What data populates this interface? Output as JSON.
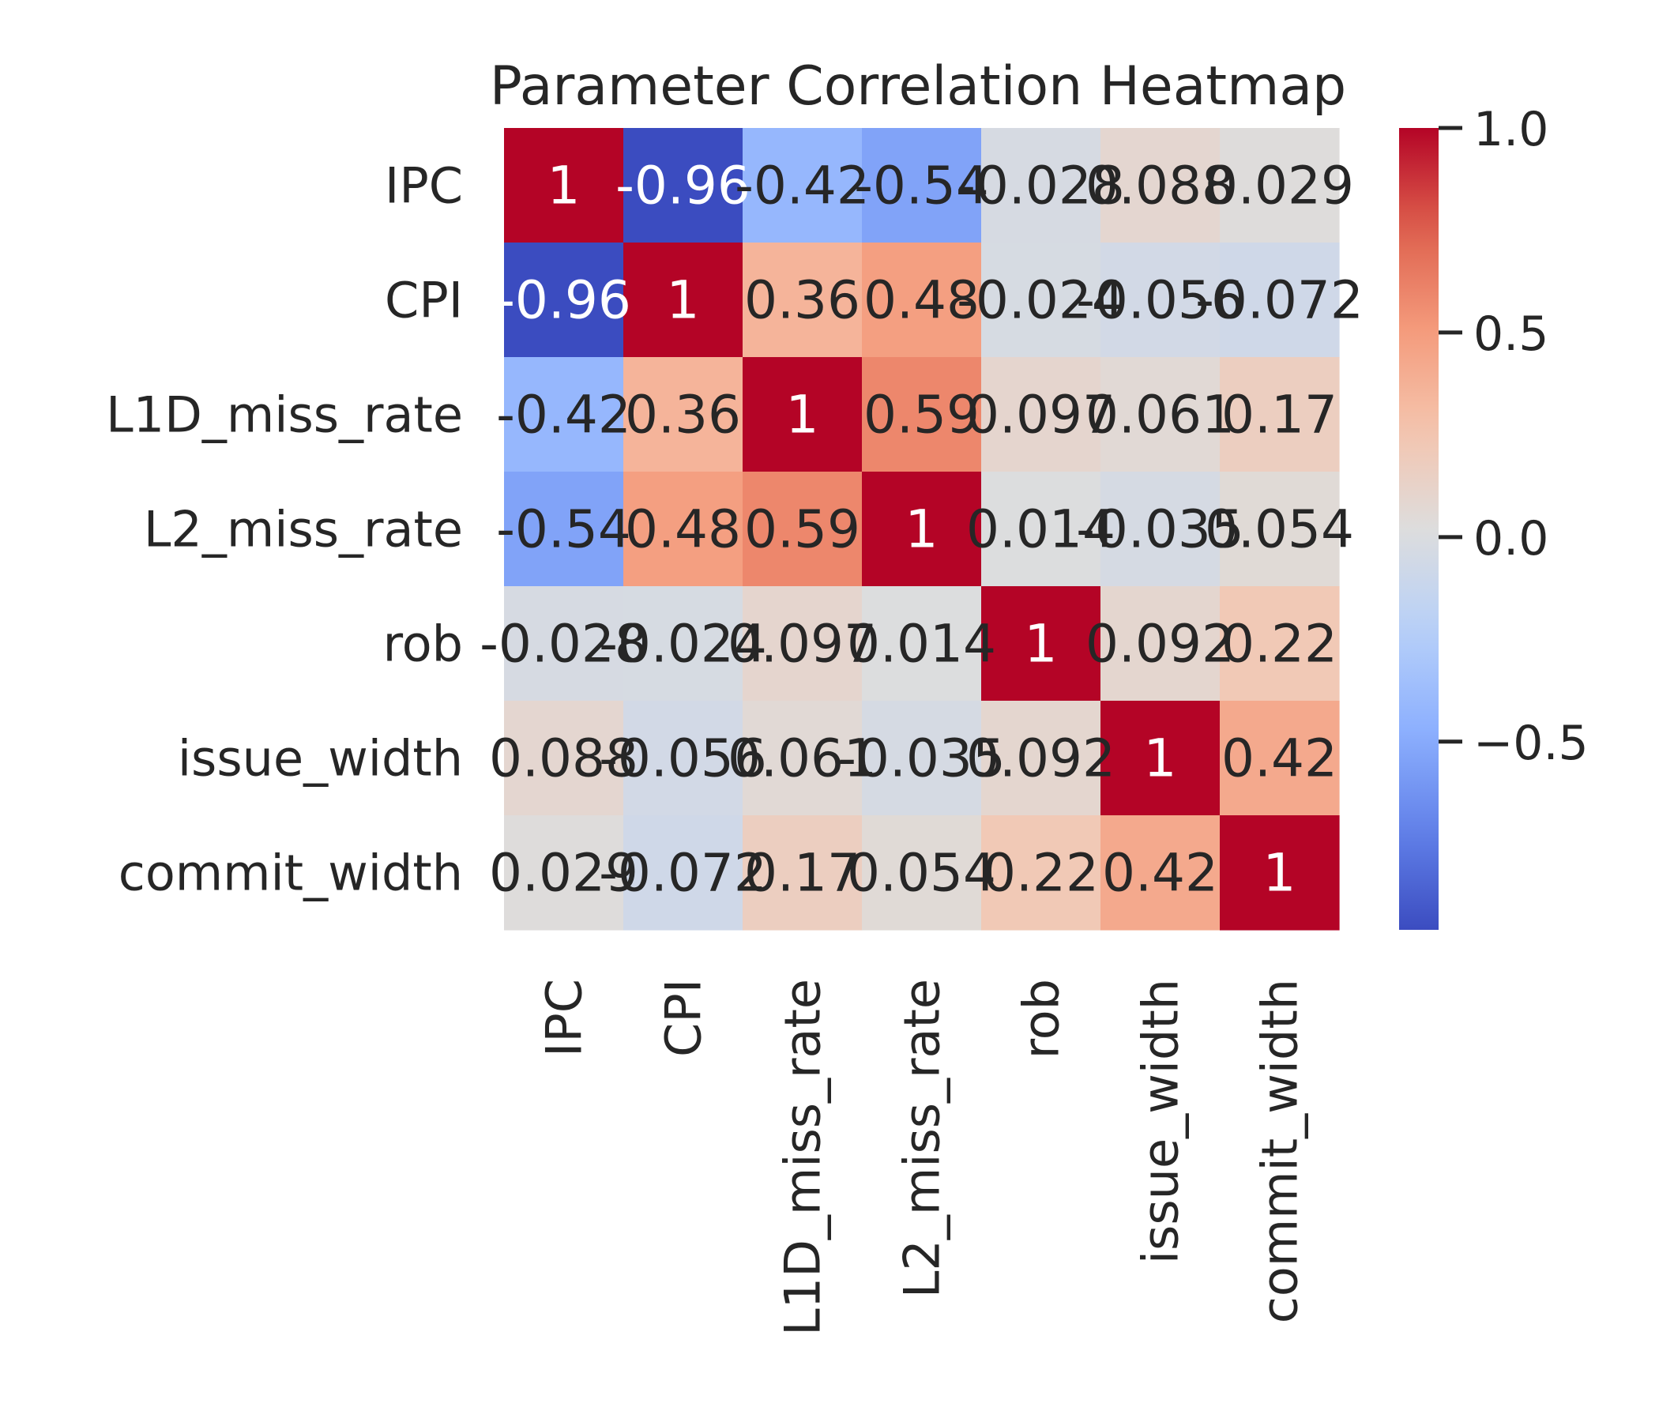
{
  "chart_data": {
    "type": "heatmap",
    "title": "Parameter Correlation Heatmap",
    "xlabel": "",
    "ylabel": "",
    "labels": [
      "IPC",
      "CPI",
      "L1D_miss_rate",
      "L2_miss_rate",
      "rob",
      "issue_width",
      "commit_width"
    ],
    "matrix": [
      [
        1,
        -0.96,
        -0.42,
        -0.54,
        -0.028,
        0.088,
        0.029
      ],
      [
        -0.96,
        1,
        0.36,
        0.48,
        -0.024,
        -0.056,
        -0.072
      ],
      [
        -0.42,
        0.36,
        1,
        0.59,
        0.097,
        0.061,
        0.17
      ],
      [
        -0.54,
        0.48,
        0.59,
        1,
        0.014,
        -0.035,
        0.054
      ],
      [
        -0.028,
        -0.024,
        0.097,
        0.014,
        1,
        0.092,
        0.22
      ],
      [
        0.088,
        -0.056,
        0.061,
        -0.035,
        0.092,
        1,
        0.42
      ],
      [
        0.029,
        -0.072,
        0.17,
        0.054,
        0.22,
        0.42,
        1
      ]
    ],
    "annotations": [
      [
        "1",
        "-0.96",
        "-0.42",
        "-0.54",
        "-0.028",
        "0.088",
        "0.029"
      ],
      [
        "-0.96",
        "1",
        "0.36",
        "0.48",
        "-0.024",
        "-0.056",
        "-0.072"
      ],
      [
        "-0.42",
        "0.36",
        "1",
        "0.59",
        "0.097",
        "0.061",
        "0.17"
      ],
      [
        "-0.54",
        "0.48",
        "0.59",
        "1",
        "0.014",
        "-0.035",
        "0.054"
      ],
      [
        "-0.028",
        "-0.024",
        "0.097",
        "0.014",
        "1",
        "0.092",
        "0.22"
      ],
      [
        "0.088",
        "-0.056",
        "0.061",
        "-0.035",
        "0.092",
        "1",
        "0.42"
      ],
      [
        "0.029",
        "-0.072",
        "0.17",
        "0.054",
        "0.22",
        "0.42",
        "1"
      ]
    ],
    "colormap": "coolwarm",
    "vmin": -0.96,
    "vmax": 1,
    "colorbar": {
      "ticks": [
        1.0,
        0.5,
        0.0,
        -0.5
      ],
      "tick_labels": [
        "1.0",
        "0.5",
        "0.0",
        "−0.5"
      ]
    },
    "grid": false,
    "legend": "colorbar-right"
  }
}
